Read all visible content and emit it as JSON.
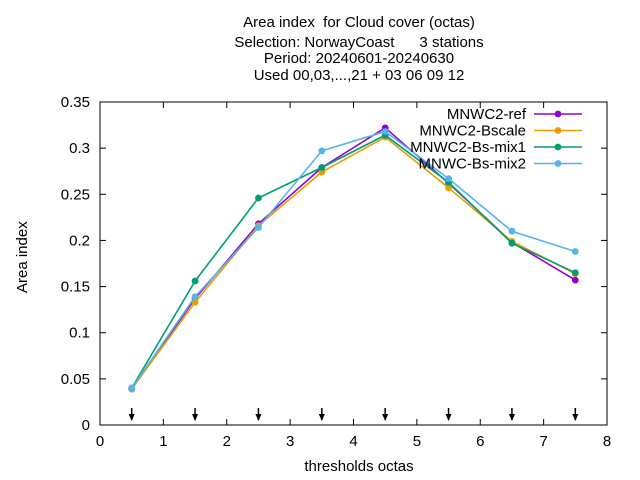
{
  "title_lines": [
    "Area index  for Cloud cover (octas)",
    "Selection: NorwayCoast      3 stations",
    "Period: 20240601-20240630",
    "Used 00,03,...,21 + 03 06 09 12"
  ],
  "chart_data": {
    "type": "line",
    "xlabel": "thresholds octas",
    "ylabel": "Area index",
    "xlim": [
      0,
      8
    ],
    "ylim": [
      0,
      0.35
    ],
    "x_ticks": [
      "0",
      "1",
      "2",
      "3",
      "4",
      "5",
      "6",
      "7",
      "8"
    ],
    "y_ticks": [
      "0",
      "0.05",
      "0.1",
      "0.15",
      "0.2",
      "0.25",
      "0.3",
      "0.35"
    ],
    "x": [
      0.5,
      1.5,
      2.5,
      3.5,
      4.5,
      5.5,
      6.5,
      7.5
    ],
    "arrow_markers_x": [
      0.5,
      1.5,
      2.5,
      3.5,
      4.5,
      5.5,
      6.5,
      7.5
    ],
    "legend_position": "top-right",
    "grid": false,
    "series": [
      {
        "name": "MNWC2-ref",
        "color": "#9400d3",
        "values": [
          0.039,
          0.137,
          0.218,
          0.279,
          0.322,
          0.262,
          0.198,
          0.157
        ]
      },
      {
        "name": "MNWC2-Bscale",
        "color": "#e69f00",
        "values": [
          0.039,
          0.133,
          0.216,
          0.274,
          0.312,
          0.257,
          0.199,
          0.164
        ]
      },
      {
        "name": "MNWC2-Bs-mix1",
        "color": "#009e73",
        "values": [
          0.04,
          0.156,
          0.246,
          0.279,
          0.314,
          0.263,
          0.197,
          0.165
        ]
      },
      {
        "name": "MNWC-Bs-mix2",
        "color": "#56b4e9",
        "values": [
          0.04,
          0.139,
          0.214,
          0.297,
          0.318,
          0.267,
          0.21,
          0.188
        ]
      }
    ]
  }
}
